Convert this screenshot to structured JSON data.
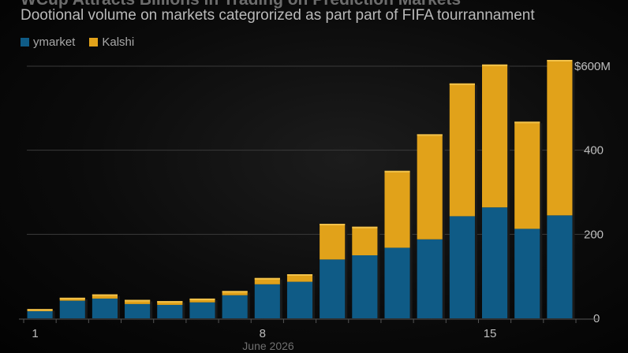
{
  "title": "WCup Attracts Billions in Trading on Prediction Markets",
  "subtitle": "Dootional volume on markets categrorized as part part of FIFA tourrannament",
  "colors": {
    "polymarket": "#0f5b86",
    "kalshi": "#e1a21a"
  },
  "chart_data": {
    "type": "bar",
    "stacked": true,
    "categories": [
      "1",
      "2",
      "3",
      "4",
      "5",
      "6",
      "7",
      "8",
      "9",
      "10",
      "11",
      "12",
      "13",
      "14",
      "15",
      "16",
      "17"
    ],
    "series": [
      {
        "name": "ymarket",
        "values": [
          17,
          42,
          47,
          34,
          32,
          38,
          55,
          81,
          87,
          140,
          150,
          168,
          188,
          243,
          264,
          213,
          245
        ]
      },
      {
        "name": "Kalshi",
        "values": [
          5,
          7,
          10,
          10,
          9,
          9,
          10,
          15,
          18,
          85,
          68,
          183,
          250,
          316,
          340,
          255,
          370
        ]
      }
    ],
    "ylim": [
      0,
      600
    ],
    "y_ticks": [
      {
        "value": 0,
        "label": "0"
      },
      {
        "value": 200,
        "label": "200"
      },
      {
        "value": 400,
        "label": "400"
      },
      {
        "value": 600,
        "label": "$600M"
      }
    ],
    "x_tick_labels": [
      {
        "index": 0,
        "label": "1"
      },
      {
        "index": 7,
        "label": "8"
      },
      {
        "index": 14,
        "label": "15"
      }
    ],
    "month_label": "June 2026",
    "legend_position": "top-left",
    "grid": true
  }
}
